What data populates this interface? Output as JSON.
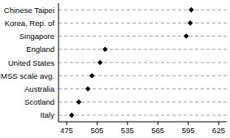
{
  "chart_data": {
    "type": "dot",
    "orientation": "horizontal",
    "categories": [
      "Chinese Taipei",
      "Korea, Rep. of",
      "Singapore",
      "England",
      "United States",
      "TIMSS scale avg.",
      "Australia",
      "Scotland",
      "Italy"
    ],
    "values": [
      598,
      597,
      593,
      513,
      508,
      500,
      496,
      487,
      480
    ],
    "color": "#000000",
    "marker": "diamond",
    "xlim": [
      467,
      633
    ],
    "xticks": [
      475,
      505,
      535,
      565,
      595,
      625
    ],
    "grid": true
  }
}
